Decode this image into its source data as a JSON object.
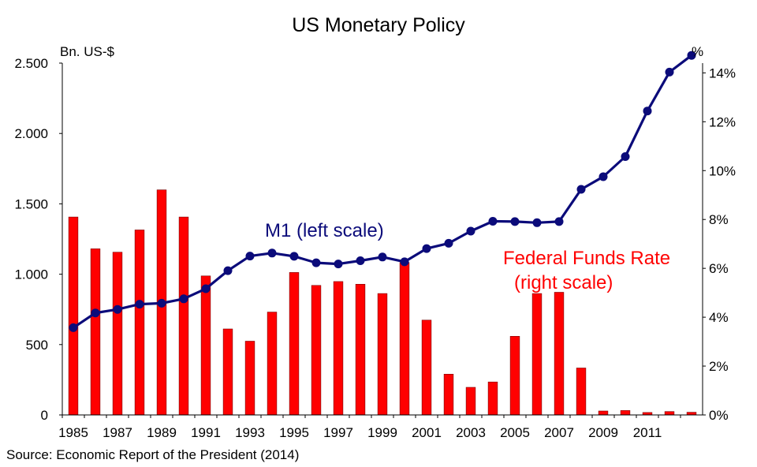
{
  "title": "US Monetary Policy",
  "left_axis_unit": "Bn. US-$",
  "right_axis_unit": "%",
  "source": "Source: Economic Report of the President (2014)",
  "colors": {
    "m1_line": "#0b0b7a",
    "ffr_bars": "#ff0000",
    "ffr_bar_edge": "#7a0000",
    "axis": "#000000"
  },
  "chart_data": {
    "type": "bar+line",
    "title": "US Monetary Policy",
    "left_axis": {
      "label": "Bn. US-$",
      "ylim": [
        0,
        2500
      ],
      "ticks": [
        0,
        500,
        1000,
        1500,
        2000,
        2500
      ],
      "tick_labels": [
        "0",
        "500",
        "1.000",
        "1.500",
        "2.000",
        "2.500"
      ]
    },
    "right_axis": {
      "label": "%",
      "ylim": [
        0,
        14.4
      ],
      "ticks": [
        0,
        2,
        4,
        6,
        8,
        10,
        12,
        14
      ],
      "tick_labels": [
        "0%",
        "2%",
        "4%",
        "6%",
        "8%",
        "10%",
        "12%",
        "14%"
      ]
    },
    "x": [
      1985,
      1986,
      1987,
      1988,
      1989,
      1990,
      1991,
      1992,
      1993,
      1994,
      1995,
      1996,
      1997,
      1998,
      1999,
      2000,
      2001,
      2002,
      2003,
      2004,
      2005,
      2006,
      2007,
      2008,
      2009,
      2010,
      2011,
      2012,
      2013
    ],
    "x_tick_labels": [
      "1985",
      "1987",
      "1989",
      "1991",
      "1993",
      "1995",
      "1997",
      "1999",
      "2001",
      "2003",
      "2005",
      "2007",
      "2009",
      "2011"
    ],
    "series": [
      {
        "name": "Federal Funds Rate (right scale)",
        "type": "bar",
        "axis": "right",
        "values": [
          8.1,
          6.8,
          6.66,
          7.57,
          9.21,
          8.1,
          5.69,
          3.52,
          3.02,
          4.21,
          5.83,
          5.3,
          5.46,
          5.35,
          4.97,
          6.24,
          3.88,
          1.67,
          1.13,
          1.35,
          3.22,
          4.97,
          5.02,
          1.92,
          0.16,
          0.18,
          0.1,
          0.14,
          0.11
        ]
      },
      {
        "name": "M1 (left scale)",
        "type": "line",
        "axis": "left",
        "values": [
          620,
          725,
          750,
          787,
          794,
          825,
          897,
          1025,
          1129,
          1150,
          1127,
          1081,
          1073,
          1096,
          1122,
          1088,
          1182,
          1220,
          1306,
          1376,
          1374,
          1366,
          1374,
          1603,
          1693,
          1836,
          2160,
          2436,
          2555
        ]
      }
    ],
    "annotations": [
      {
        "text": "M1 (left scale)",
        "series": "M1 (left scale)"
      },
      {
        "text": "Federal Funds Rate",
        "series": "Federal Funds Rate (right scale)"
      },
      {
        "text": "(right scale)",
        "series": "Federal Funds Rate (right scale)"
      }
    ],
    "grid": false
  }
}
